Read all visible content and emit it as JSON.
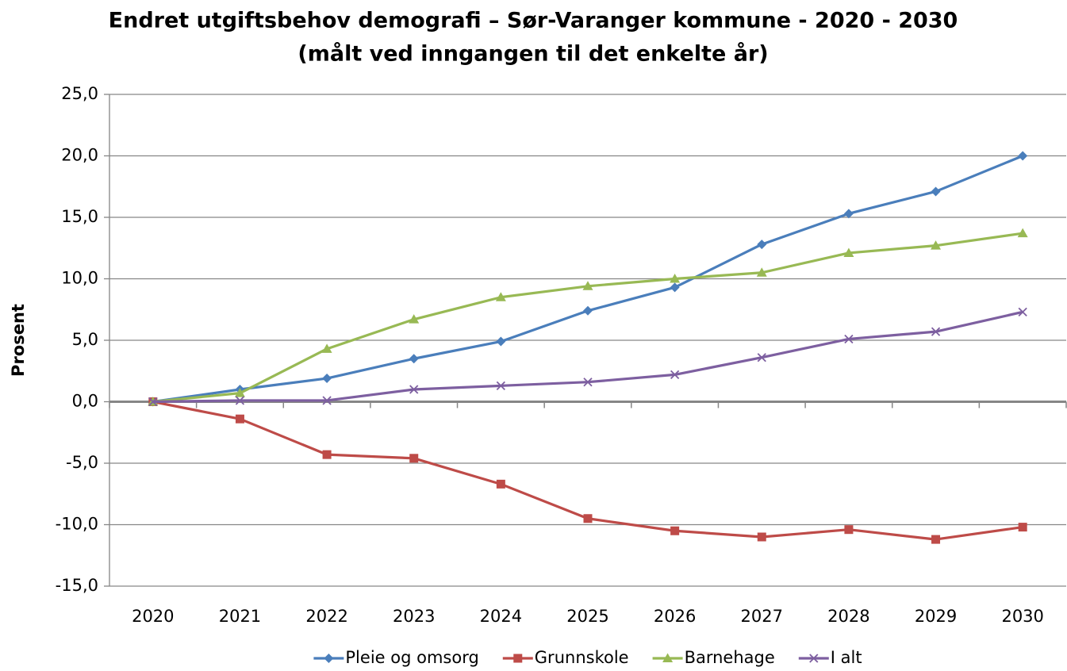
{
  "chart_data": {
    "type": "line",
    "title": "Endret utgiftsbehov demografi – Sør-Varanger kommune - 2020 - 2030",
    "subtitle": "(målt ved inngangen til det enkelte år)",
    "y_label": "Prosent",
    "categories": [
      "2020",
      "2021",
      "2022",
      "2023",
      "2024",
      "2025",
      "2026",
      "2027",
      "2028",
      "2029",
      "2030"
    ],
    "series": [
      {
        "name": "Pleie og omsorg",
        "color": "#4a7ebb",
        "marker": "diamond",
        "values": [
          0,
          1.0,
          1.9,
          3.5,
          4.9,
          7.4,
          9.3,
          12.8,
          15.3,
          17.1,
          20.0
        ]
      },
      {
        "name": "Grunnskole",
        "color": "#be4b48",
        "marker": "square",
        "values": [
          0,
          -1.4,
          -4.3,
          -4.6,
          -6.7,
          -9.5,
          -10.5,
          -11.0,
          -10.4,
          -11.2,
          -10.2
        ]
      },
      {
        "name": "Barnehage",
        "color": "#98b954",
        "marker": "triangle",
        "values": [
          0,
          0.7,
          4.3,
          6.7,
          8.5,
          9.4,
          10.0,
          10.5,
          12.1,
          12.7,
          13.7
        ]
      },
      {
        "name": "I alt",
        "color": "#7d5fa0",
        "marker": "x",
        "values": [
          0,
          0.1,
          0.1,
          1.0,
          1.3,
          1.6,
          2.2,
          3.6,
          5.1,
          5.7,
          7.3
        ]
      }
    ],
    "ylim": [
      -15,
      25
    ],
    "yticks": [
      {
        "value": -15,
        "label": "-15,0"
      },
      {
        "value": -10,
        "label": "-10,0"
      },
      {
        "value": -5,
        "label": "-5,0"
      },
      {
        "value": 0,
        "label": "0,0"
      },
      {
        "value": 5,
        "label": "5,0"
      },
      {
        "value": 10,
        "label": "10,0"
      },
      {
        "value": 15,
        "label": "15,0"
      },
      {
        "value": 20,
        "label": "20,0"
      },
      {
        "value": 25,
        "label": "25,0"
      }
    ],
    "grid": true,
    "legend": "bottom"
  }
}
